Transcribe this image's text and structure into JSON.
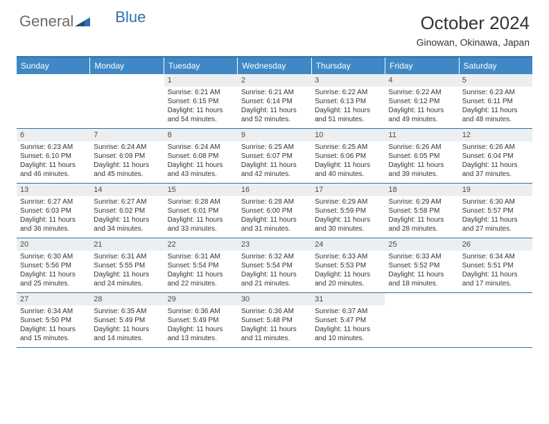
{
  "logo": {
    "part1": "General",
    "part2": "Blue"
  },
  "title": "October 2024",
  "location": "Ginowan, Okinawa, Japan",
  "colors": {
    "header_bg": "#3f88c5",
    "header_text": "#ffffff",
    "daynum_bg": "#eceff1",
    "rule": "#2f6fa8",
    "text": "#333333",
    "logo_gray": "#6b6b6b",
    "logo_blue": "#2f6fa8"
  },
  "dow": [
    "Sunday",
    "Monday",
    "Tuesday",
    "Wednesday",
    "Thursday",
    "Friday",
    "Saturday"
  ],
  "weeks": [
    [
      {
        "n": "",
        "lines": []
      },
      {
        "n": "",
        "lines": []
      },
      {
        "n": "1",
        "lines": [
          "Sunrise: 6:21 AM",
          "Sunset: 6:15 PM",
          "Daylight: 11 hours and 54 minutes."
        ]
      },
      {
        "n": "2",
        "lines": [
          "Sunrise: 6:21 AM",
          "Sunset: 6:14 PM",
          "Daylight: 11 hours and 52 minutes."
        ]
      },
      {
        "n": "3",
        "lines": [
          "Sunrise: 6:22 AM",
          "Sunset: 6:13 PM",
          "Daylight: 11 hours and 51 minutes."
        ]
      },
      {
        "n": "4",
        "lines": [
          "Sunrise: 6:22 AM",
          "Sunset: 6:12 PM",
          "Daylight: 11 hours and 49 minutes."
        ]
      },
      {
        "n": "5",
        "lines": [
          "Sunrise: 6:23 AM",
          "Sunset: 6:11 PM",
          "Daylight: 11 hours and 48 minutes."
        ]
      }
    ],
    [
      {
        "n": "6",
        "lines": [
          "Sunrise: 6:23 AM",
          "Sunset: 6:10 PM",
          "Daylight: 11 hours and 46 minutes."
        ]
      },
      {
        "n": "7",
        "lines": [
          "Sunrise: 6:24 AM",
          "Sunset: 6:09 PM",
          "Daylight: 11 hours and 45 minutes."
        ]
      },
      {
        "n": "8",
        "lines": [
          "Sunrise: 6:24 AM",
          "Sunset: 6:08 PM",
          "Daylight: 11 hours and 43 minutes."
        ]
      },
      {
        "n": "9",
        "lines": [
          "Sunrise: 6:25 AM",
          "Sunset: 6:07 PM",
          "Daylight: 11 hours and 42 minutes."
        ]
      },
      {
        "n": "10",
        "lines": [
          "Sunrise: 6:25 AM",
          "Sunset: 6:06 PM",
          "Daylight: 11 hours and 40 minutes."
        ]
      },
      {
        "n": "11",
        "lines": [
          "Sunrise: 6:26 AM",
          "Sunset: 6:05 PM",
          "Daylight: 11 hours and 39 minutes."
        ]
      },
      {
        "n": "12",
        "lines": [
          "Sunrise: 6:26 AM",
          "Sunset: 6:04 PM",
          "Daylight: 11 hours and 37 minutes."
        ]
      }
    ],
    [
      {
        "n": "13",
        "lines": [
          "Sunrise: 6:27 AM",
          "Sunset: 6:03 PM",
          "Daylight: 11 hours and 36 minutes."
        ]
      },
      {
        "n": "14",
        "lines": [
          "Sunrise: 6:27 AM",
          "Sunset: 6:02 PM",
          "Daylight: 11 hours and 34 minutes."
        ]
      },
      {
        "n": "15",
        "lines": [
          "Sunrise: 6:28 AM",
          "Sunset: 6:01 PM",
          "Daylight: 11 hours and 33 minutes."
        ]
      },
      {
        "n": "16",
        "lines": [
          "Sunrise: 6:28 AM",
          "Sunset: 6:00 PM",
          "Daylight: 11 hours and 31 minutes."
        ]
      },
      {
        "n": "17",
        "lines": [
          "Sunrise: 6:29 AM",
          "Sunset: 5:59 PM",
          "Daylight: 11 hours and 30 minutes."
        ]
      },
      {
        "n": "18",
        "lines": [
          "Sunrise: 6:29 AM",
          "Sunset: 5:58 PM",
          "Daylight: 11 hours and 28 minutes."
        ]
      },
      {
        "n": "19",
        "lines": [
          "Sunrise: 6:30 AM",
          "Sunset: 5:57 PM",
          "Daylight: 11 hours and 27 minutes."
        ]
      }
    ],
    [
      {
        "n": "20",
        "lines": [
          "Sunrise: 6:30 AM",
          "Sunset: 5:56 PM",
          "Daylight: 11 hours and 25 minutes."
        ]
      },
      {
        "n": "21",
        "lines": [
          "Sunrise: 6:31 AM",
          "Sunset: 5:55 PM",
          "Daylight: 11 hours and 24 minutes."
        ]
      },
      {
        "n": "22",
        "lines": [
          "Sunrise: 6:31 AM",
          "Sunset: 5:54 PM",
          "Daylight: 11 hours and 22 minutes."
        ]
      },
      {
        "n": "23",
        "lines": [
          "Sunrise: 6:32 AM",
          "Sunset: 5:54 PM",
          "Daylight: 11 hours and 21 minutes."
        ]
      },
      {
        "n": "24",
        "lines": [
          "Sunrise: 6:33 AM",
          "Sunset: 5:53 PM",
          "Daylight: 11 hours and 20 minutes."
        ]
      },
      {
        "n": "25",
        "lines": [
          "Sunrise: 6:33 AM",
          "Sunset: 5:52 PM",
          "Daylight: 11 hours and 18 minutes."
        ]
      },
      {
        "n": "26",
        "lines": [
          "Sunrise: 6:34 AM",
          "Sunset: 5:51 PM",
          "Daylight: 11 hours and 17 minutes."
        ]
      }
    ],
    [
      {
        "n": "27",
        "lines": [
          "Sunrise: 6:34 AM",
          "Sunset: 5:50 PM",
          "Daylight: 11 hours and 15 minutes."
        ]
      },
      {
        "n": "28",
        "lines": [
          "Sunrise: 6:35 AM",
          "Sunset: 5:49 PM",
          "Daylight: 11 hours and 14 minutes."
        ]
      },
      {
        "n": "29",
        "lines": [
          "Sunrise: 6:36 AM",
          "Sunset: 5:49 PM",
          "Daylight: 11 hours and 13 minutes."
        ]
      },
      {
        "n": "30",
        "lines": [
          "Sunrise: 6:36 AM",
          "Sunset: 5:48 PM",
          "Daylight: 11 hours and 11 minutes."
        ]
      },
      {
        "n": "31",
        "lines": [
          "Sunrise: 6:37 AM",
          "Sunset: 5:47 PM",
          "Daylight: 11 hours and 10 minutes."
        ]
      },
      {
        "n": "",
        "lines": []
      },
      {
        "n": "",
        "lines": []
      }
    ]
  ]
}
